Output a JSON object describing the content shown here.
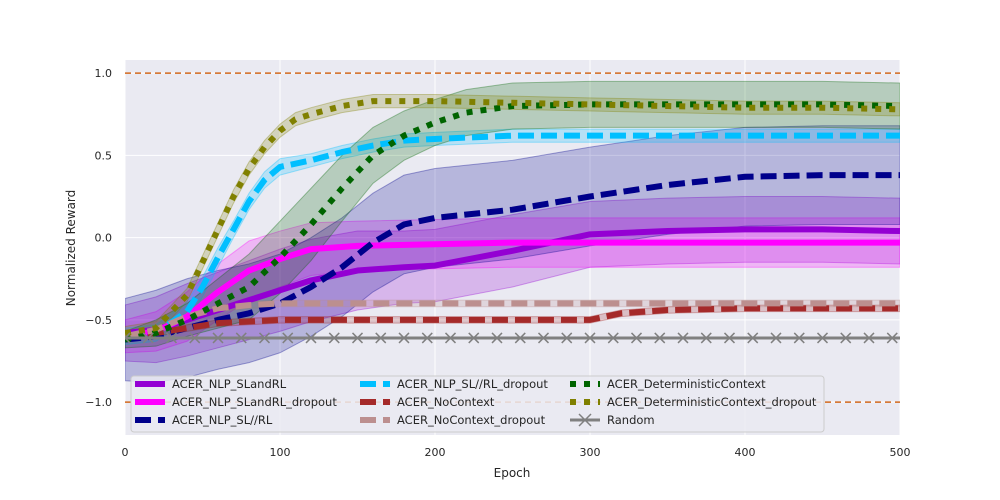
{
  "chart_data": {
    "type": "line",
    "xlabel": "Epoch",
    "ylabel": "Normalized Reward",
    "xlim": [
      0,
      500
    ],
    "ylim": [
      -1.2,
      1.08
    ],
    "xticks": [
      "0",
      "100",
      "200",
      "300",
      "400",
      "500"
    ],
    "xtick_values": [
      0,
      100,
      200,
      300,
      400,
      500
    ],
    "yticks": [
      "1.0",
      "0.5",
      "0.0",
      "−0.5",
      "−1.0"
    ],
    "ytick_values": [
      1.0,
      0.5,
      0.0,
      -0.5,
      -1.0
    ],
    "grid": true,
    "background": "#eaeaf2",
    "legend_position": "lower-left",
    "reference_lines": [
      {
        "y": 1.0,
        "color": "#d2691e",
        "style": "dashed"
      },
      {
        "y": -1.0,
        "color": "#d2691e",
        "style": "dashed"
      }
    ],
    "series": [
      {
        "name": "ACER_NLP_SLandRL",
        "color": "#9400d3",
        "style": "solid",
        "x": [
          0,
          20,
          40,
          60,
          80,
          100,
          120,
          150,
          180,
          200,
          250,
          300,
          350,
          400,
          450,
          500
        ],
        "y": [
          -0.58,
          -0.56,
          -0.5,
          -0.44,
          -0.38,
          -0.32,
          -0.26,
          -0.2,
          -0.18,
          -0.17,
          -0.08,
          0.02,
          0.04,
          0.05,
          0.05,
          0.04
        ],
        "band": [
          0.17,
          0.2,
          0.22,
          0.23,
          0.24,
          0.25,
          0.25,
          0.24,
          0.22,
          0.22,
          0.22,
          0.2,
          0.2,
          0.2,
          0.2,
          0.2
        ]
      },
      {
        "name": "ACER_NLP_SLandRL_dropout",
        "color": "#ff00ff",
        "style": "solid",
        "x": [
          0,
          20,
          40,
          60,
          80,
          100,
          120,
          150,
          200,
          250,
          300,
          350,
          400,
          450,
          500
        ],
        "y": [
          -0.6,
          -0.57,
          -0.48,
          -0.33,
          -0.2,
          -0.13,
          -0.07,
          -0.05,
          -0.04,
          -0.03,
          -0.03,
          -0.03,
          -0.03,
          -0.03,
          -0.03
        ],
        "band": [
          0.1,
          0.12,
          0.15,
          0.17,
          0.18,
          0.17,
          0.16,
          0.15,
          0.15,
          0.15,
          0.15,
          0.15,
          0.15,
          0.15,
          0.15
        ]
      },
      {
        "name": "ACER_NLP_SL//RL",
        "color": "#00008b",
        "style": "dashed",
        "x": [
          0,
          20,
          40,
          60,
          80,
          100,
          120,
          140,
          160,
          180,
          200,
          250,
          300,
          350,
          400,
          450,
          500
        ],
        "y": [
          -0.62,
          -0.6,
          -0.55,
          -0.5,
          -0.46,
          -0.4,
          -0.3,
          -0.18,
          -0.03,
          0.08,
          0.12,
          0.17,
          0.25,
          0.32,
          0.37,
          0.38,
          0.38
        ],
        "band": [
          0.25,
          0.28,
          0.3,
          0.3,
          0.3,
          0.3,
          0.3,
          0.3,
          0.3,
          0.3,
          0.3,
          0.3,
          0.3,
          0.3,
          0.3,
          0.3,
          0.3
        ]
      },
      {
        "name": "ACER_NLP_SL//RL_dropout",
        "color": "#00bfff",
        "style": "dashed",
        "x": [
          0,
          20,
          40,
          50,
          60,
          70,
          80,
          90,
          100,
          120,
          140,
          160,
          180,
          200,
          250,
          300,
          350,
          400,
          450,
          500
        ],
        "y": [
          -0.6,
          -0.58,
          -0.45,
          -0.3,
          -0.12,
          0.05,
          0.22,
          0.35,
          0.43,
          0.47,
          0.52,
          0.56,
          0.59,
          0.6,
          0.62,
          0.62,
          0.62,
          0.62,
          0.62,
          0.62
        ],
        "band": [
          0.05,
          0.05,
          0.06,
          0.06,
          0.06,
          0.05,
          0.05,
          0.05,
          0.05,
          0.04,
          0.04,
          0.04,
          0.04,
          0.04,
          0.04,
          0.04,
          0.04,
          0.04,
          0.04,
          0.04
        ]
      },
      {
        "name": "ACER_NoContext",
        "color": "#a52a2a",
        "style": "dashed",
        "x": [
          0,
          20,
          40,
          60,
          80,
          100,
          150,
          200,
          250,
          300,
          320,
          350,
          400,
          450,
          500
        ],
        "y": [
          -0.6,
          -0.58,
          -0.55,
          -0.52,
          -0.51,
          -0.5,
          -0.5,
          -0.5,
          -0.5,
          -0.5,
          -0.46,
          -0.44,
          -0.43,
          -0.43,
          -0.43
        ],
        "band": [
          0.02,
          0.02,
          0.02,
          0.02,
          0.02,
          0.02,
          0.02,
          0.02,
          0.02,
          0.02,
          0.02,
          0.02,
          0.02,
          0.02,
          0.02
        ]
      },
      {
        "name": "ACER_NoContext_dropout",
        "color": "#bc8f8f",
        "style": "dashed",
        "x": [
          0,
          20,
          40,
          60,
          80,
          100,
          150,
          200,
          250,
          300,
          350,
          400,
          450,
          500
        ],
        "y": [
          -0.6,
          -0.56,
          -0.48,
          -0.43,
          -0.41,
          -0.4,
          -0.4,
          -0.4,
          -0.4,
          -0.4,
          -0.4,
          -0.4,
          -0.4,
          -0.4
        ],
        "band": [
          0.02,
          0.02,
          0.02,
          0.02,
          0.02,
          0.02,
          0.02,
          0.02,
          0.02,
          0.02,
          0.02,
          0.02,
          0.02,
          0.02
        ]
      },
      {
        "name": "ACER_DeterministicContext",
        "color": "#006400",
        "style": "dotted",
        "x": [
          0,
          20,
          40,
          60,
          80,
          100,
          120,
          140,
          160,
          180,
          200,
          220,
          250,
          300,
          350,
          400,
          450,
          500
        ],
        "y": [
          -0.62,
          -0.58,
          -0.5,
          -0.4,
          -0.3,
          -0.12,
          0.08,
          0.3,
          0.5,
          0.62,
          0.7,
          0.76,
          0.8,
          0.81,
          0.81,
          0.81,
          0.81,
          0.8
        ],
        "band": [
          0.05,
          0.08,
          0.1,
          0.15,
          0.2,
          0.22,
          0.22,
          0.2,
          0.17,
          0.15,
          0.14,
          0.14,
          0.14,
          0.14,
          0.14,
          0.14,
          0.14,
          0.14
        ]
      },
      {
        "name": "ACER_DeterministicContext_dropout",
        "color": "#808000",
        "style": "dotted",
        "x": [
          0,
          20,
          40,
          50,
          60,
          70,
          80,
          90,
          100,
          110,
          120,
          140,
          160,
          200,
          250,
          300,
          350,
          400,
          450,
          500
        ],
        "y": [
          -0.58,
          -0.55,
          -0.35,
          -0.15,
          0.05,
          0.25,
          0.42,
          0.55,
          0.65,
          0.72,
          0.75,
          0.8,
          0.83,
          0.83,
          0.82,
          0.81,
          0.8,
          0.79,
          0.79,
          0.78
        ],
        "band": [
          0.04,
          0.04,
          0.04,
          0.04,
          0.04,
          0.04,
          0.04,
          0.04,
          0.04,
          0.04,
          0.04,
          0.04,
          0.04,
          0.04,
          0.04,
          0.04,
          0.04,
          0.04,
          0.04,
          0.04
        ]
      },
      {
        "name": "Random",
        "color": "#808080",
        "style": "solid-x",
        "x": [
          0,
          100,
          200,
          300,
          400,
          500
        ],
        "y": [
          -0.61,
          -0.61,
          -0.61,
          -0.61,
          -0.61,
          -0.61
        ],
        "band": [
          0,
          0,
          0,
          0,
          0,
          0
        ]
      }
    ]
  }
}
